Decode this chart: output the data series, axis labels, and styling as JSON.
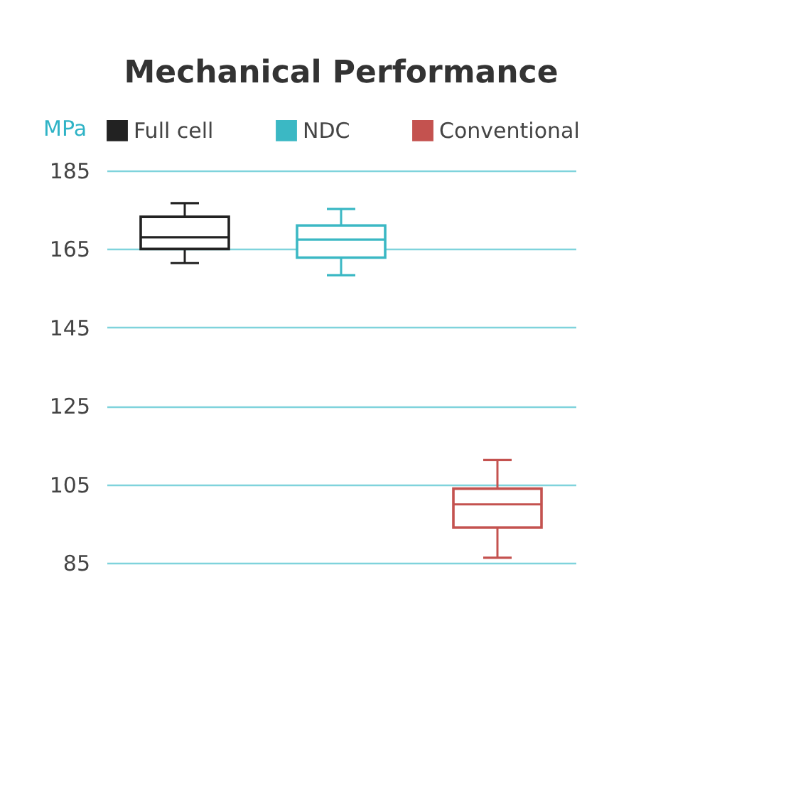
{
  "chart_data": {
    "type": "box",
    "title": "Mechanical Performance",
    "ylabel": "MPa",
    "categories": [
      null,
      null,
      null
    ],
    "ylim": [
      85,
      185
    ],
    "yticks": [
      85,
      105,
      125,
      145,
      165,
      185
    ],
    "grid": "y",
    "legend": "top",
    "series": [
      {
        "name": "Full cell",
        "color": "#222222",
        "boxes": [
          {
            "low": 161.4,
            "q1": 165,
            "median": 168,
            "q3": 173.2,
            "high": 176.7
          },
          null,
          null
        ]
      },
      {
        "name": "NDC",
        "color": "#3bb8c4",
        "boxes": [
          null,
          {
            "low": 158.3,
            "q1": 162.8,
            "median": 167.4,
            "q3": 171,
            "high": 175.2
          },
          null
        ]
      },
      {
        "name": "Conventional",
        "color": "#c4524f",
        "boxes": [
          null,
          null,
          {
            "low": 86.3,
            "q1": 94,
            "median": 99.9,
            "q3": 103.9,
            "high": 111.2
          }
        ]
      }
    ]
  }
}
